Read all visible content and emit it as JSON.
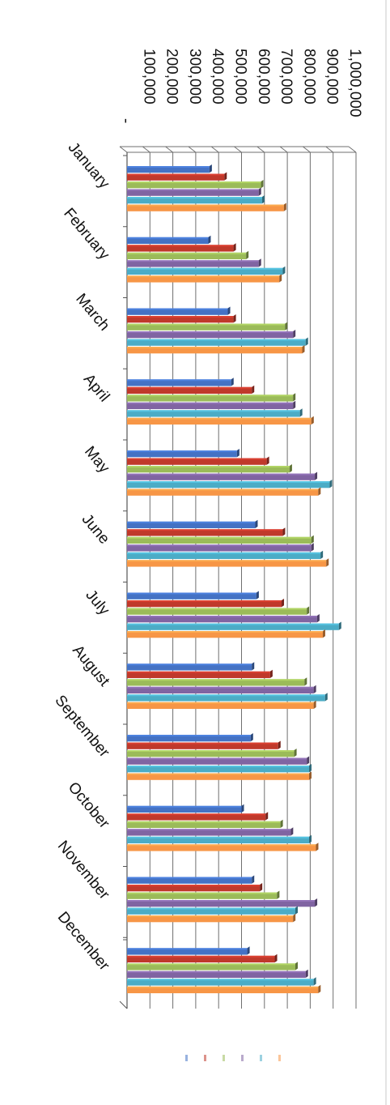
{
  "chart_data": {
    "type": "bar",
    "orientation": "horizontal",
    "categories": [
      "January",
      "February",
      "March",
      "April",
      "May",
      "June",
      "July",
      "August",
      "September",
      "October",
      "November",
      "December"
    ],
    "y_tick_labels": [
      "-",
      "100,000",
      "200,000",
      "300,000",
      "400,000",
      "500,000",
      "600,000",
      "700,000",
      "800,000",
      "900,000",
      "1,000,000"
    ],
    "ylim": [
      0,
      1000000
    ],
    "grid": true,
    "legend": "bottom",
    "series": [
      {
        "color": "#4472c4",
        "values": [
          360000,
          355000,
          440000,
          455000,
          480000,
          560000,
          565000,
          545000,
          540000,
          500000,
          545000,
          525000
        ]
      },
      {
        "color": "#c0392b",
        "values": [
          425000,
          465000,
          465000,
          545000,
          610000,
          680000,
          675000,
          625000,
          660000,
          605000,
          580000,
          645000
        ]
      },
      {
        "color": "#9bbb59",
        "values": [
          585000,
          520000,
          690000,
          725000,
          710000,
          805000,
          785000,
          775000,
          730000,
          670000,
          655000,
          735000
        ]
      },
      {
        "color": "#8064a2",
        "values": [
          575000,
          575000,
          725000,
          725000,
          820000,
          805000,
          830000,
          815000,
          785000,
          715000,
          820000,
          780000
        ]
      },
      {
        "color": "#4bacc6",
        "values": [
          590000,
          680000,
          780000,
          755000,
          885000,
          845000,
          925000,
          865000,
          795000,
          795000,
          735000,
          815000
        ]
      },
      {
        "color": "#f79646",
        "values": [
          685000,
          665000,
          765000,
          805000,
          835000,
          870000,
          855000,
          815000,
          795000,
          825000,
          725000,
          835000
        ]
      }
    ]
  }
}
